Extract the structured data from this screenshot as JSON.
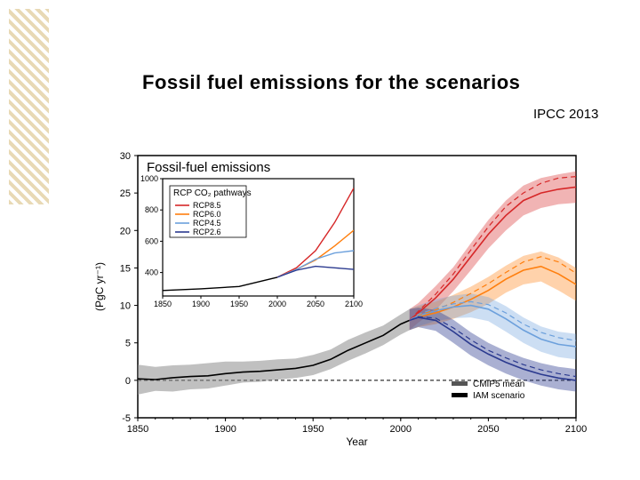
{
  "title": "Fossil fuel emissions for the scenarios",
  "source": "IPCC 2013",
  "main_chart": {
    "type": "line",
    "title": "Fossil-fuel emissions",
    "title_fontsize": 15,
    "xlabel": "Year",
    "ylabel": "(PgC yr⁻¹)",
    "label_fontsize": 12,
    "xlim": [
      1850,
      2100
    ],
    "ylim": [
      -5,
      30
    ],
    "xtick_step": 50,
    "ytick_step": 5,
    "xticks": [
      1850,
      1900,
      1950,
      2000,
      2050,
      2100
    ],
    "yticks": [
      -5,
      0,
      5,
      10,
      15,
      20,
      25,
      30
    ],
    "axis_color": "#000000",
    "tick_fontsize": 11,
    "background_color": "#ffffff",
    "historical": {
      "color": "#000000",
      "band_color": "#8c8c8c",
      "band_opacity": 0.55,
      "line_width": 1.6,
      "x": [
        1850,
        1860,
        1870,
        1880,
        1890,
        1900,
        1910,
        1920,
        1930,
        1940,
        1950,
        1960,
        1970,
        1980,
        1990,
        2000,
        2005
      ],
      "y": [
        0.2,
        0.1,
        0.35,
        0.5,
        0.6,
        0.9,
        1.1,
        1.2,
        1.4,
        1.6,
        2.0,
        2.8,
        4.0,
        5.0,
        6.0,
        7.5,
        8.0
      ],
      "lo": [
        -1.9,
        -1.4,
        -1.5,
        -1.2,
        -1.1,
        -0.7,
        -0.3,
        -0.2,
        0.1,
        0.3,
        0.7,
        1.5,
        2.6,
        3.6,
        4.7,
        6.1,
        6.7
      ],
      "hi": [
        2.1,
        1.8,
        2.0,
        2.1,
        2.3,
        2.5,
        2.5,
        2.6,
        2.8,
        2.9,
        3.4,
        4.1,
        5.4,
        6.4,
        7.3,
        8.8,
        9.5
      ]
    },
    "scenarios": [
      {
        "name": "RCP8.5",
        "color": "#d62728",
        "band_color": "#d62728",
        "band_opacity": 0.35,
        "line_width": 1.6,
        "dash_color": "#d62728",
        "x": [
          2005,
          2010,
          2020,
          2030,
          2040,
          2050,
          2060,
          2070,
          2080,
          2090,
          2100
        ],
        "y": [
          8.0,
          9.0,
          11.0,
          13.5,
          16.5,
          19.5,
          22.0,
          24.0,
          25.0,
          25.5,
          25.8
        ],
        "lo": [
          6.7,
          7.7,
          9.4,
          11.9,
          14.7,
          17.6,
          20.0,
          22.0,
          23.0,
          23.5,
          23.7
        ],
        "hi": [
          9.5,
          10.3,
          12.6,
          15.1,
          18.3,
          21.4,
          24.0,
          26.0,
          27.0,
          27.5,
          27.9
        ],
        "dash": [
          8.0,
          9.2,
          11.5,
          14.2,
          17.4,
          20.5,
          23.2,
          25.0,
          26.3,
          27.0,
          27.2
        ]
      },
      {
        "name": "RCP6.0",
        "color": "#ff7f0e",
        "band_color": "#ff7f0e",
        "band_opacity": 0.35,
        "line_width": 1.6,
        "dash_color": "#ff7f0e",
        "x": [
          2005,
          2010,
          2020,
          2030,
          2040,
          2050,
          2060,
          2070,
          2080,
          2090,
          2100
        ],
        "y": [
          8.0,
          8.5,
          9.0,
          9.8,
          10.8,
          12.0,
          13.5,
          14.7,
          15.2,
          14.2,
          12.8
        ],
        "lo": [
          6.7,
          7.1,
          7.5,
          8.2,
          9.1,
          10.2,
          11.7,
          12.8,
          13.2,
          12.0,
          10.6
        ],
        "hi": [
          9.5,
          9.9,
          10.5,
          11.4,
          12.5,
          13.8,
          15.3,
          16.6,
          17.2,
          16.4,
          15.0
        ],
        "dash": [
          8.0,
          8.7,
          9.4,
          10.4,
          11.6,
          12.9,
          14.4,
          15.8,
          16.5,
          15.8,
          14.3
        ]
      },
      {
        "name": "RCP4.5",
        "color": "#6ca0dc",
        "band_color": "#6ca0dc",
        "band_opacity": 0.35,
        "line_width": 1.6,
        "dash_color": "#6ca0dc",
        "x": [
          2005,
          2010,
          2020,
          2030,
          2040,
          2050,
          2060,
          2070,
          2080,
          2090,
          2100
        ],
        "y": [
          8.0,
          8.6,
          9.3,
          9.8,
          10.0,
          9.5,
          8.2,
          6.7,
          5.5,
          4.8,
          4.5
        ],
        "lo": [
          6.7,
          7.2,
          7.9,
          8.3,
          8.4,
          7.9,
          6.5,
          5.0,
          3.8,
          3.1,
          2.8
        ],
        "hi": [
          9.5,
          10.0,
          10.8,
          11.3,
          11.6,
          11.1,
          9.9,
          8.4,
          7.2,
          6.5,
          6.2
        ],
        "dash": [
          8.0,
          8.8,
          9.6,
          10.2,
          10.5,
          10.1,
          9.0,
          7.5,
          6.4,
          5.7,
          5.3
        ]
      },
      {
        "name": "RCP2.6",
        "color": "#2b3a8f",
        "band_color": "#2b3a8f",
        "band_opacity": 0.4,
        "line_width": 1.6,
        "dash_color": "#2b3a8f",
        "x": [
          2005,
          2010,
          2020,
          2030,
          2040,
          2050,
          2060,
          2070,
          2080,
          2090,
          2100
        ],
        "y": [
          8.0,
          8.4,
          8.0,
          6.5,
          4.8,
          3.5,
          2.4,
          1.5,
          0.8,
          0.3,
          0.0
        ],
        "lo": [
          6.7,
          7.1,
          6.6,
          5.0,
          3.3,
          2.0,
          0.9,
          0.0,
          -0.7,
          -1.2,
          -1.5
        ],
        "hi": [
          9.5,
          9.7,
          9.4,
          8.1,
          6.4,
          5.0,
          3.9,
          3.0,
          2.3,
          1.8,
          1.5
        ],
        "dash": [
          8.0,
          8.5,
          8.3,
          7.0,
          5.4,
          4.0,
          3.0,
          2.1,
          1.4,
          0.9,
          0.5
        ]
      }
    ],
    "zero_line_color": "#000000",
    "legend_main": {
      "items": [
        {
          "label": "CMIP5 mean",
          "swatch_color": "#555555"
        },
        {
          "label": "IAM scenario",
          "swatch_color": "#000000"
        }
      ],
      "fontsize": 10
    }
  },
  "inset_chart": {
    "type": "line",
    "title": "RCP CO₂ pathways",
    "title_fontsize": 10,
    "xlim": [
      1850,
      2100
    ],
    "ylim": [
      250,
      1000
    ],
    "xticks": [
      1850,
      1900,
      1950,
      2000,
      2050,
      2100
    ],
    "yticks": [
      400,
      600,
      800,
      1000
    ],
    "tick_fontsize": 9,
    "legend_items": [
      {
        "label": "RCP8.5",
        "color": "#d62728"
      },
      {
        "label": "RCP6.0",
        "color": "#ff7f0e"
      },
      {
        "label": "RCP4.5",
        "color": "#6ca0dc"
      },
      {
        "label": "RCP2.6",
        "color": "#2b3a8f"
      }
    ],
    "historical": {
      "color": "#000000",
      "x": [
        1850,
        1900,
        1950,
        2000
      ],
      "y": [
        285,
        296,
        311,
        370
      ]
    },
    "series": [
      {
        "name": "RCP8.5",
        "color": "#d62728",
        "x": [
          2000,
          2025,
          2050,
          2075,
          2100
        ],
        "y": [
          370,
          430,
          540,
          720,
          940
        ]
      },
      {
        "name": "RCP6.0",
        "color": "#ff7f0e",
        "x": [
          2000,
          2025,
          2050,
          2075,
          2100
        ],
        "y": [
          370,
          420,
          480,
          570,
          670
        ]
      },
      {
        "name": "RCP4.5",
        "color": "#6ca0dc",
        "x": [
          2000,
          2025,
          2050,
          2075,
          2100
        ],
        "y": [
          370,
          420,
          485,
          525,
          540
        ]
      },
      {
        "name": "RCP2.6",
        "color": "#2b3a8f",
        "x": [
          2000,
          2025,
          2050,
          2075,
          2100
        ],
        "y": [
          370,
          415,
          440,
          430,
          420
        ]
      }
    ],
    "border_color": "#000000"
  }
}
